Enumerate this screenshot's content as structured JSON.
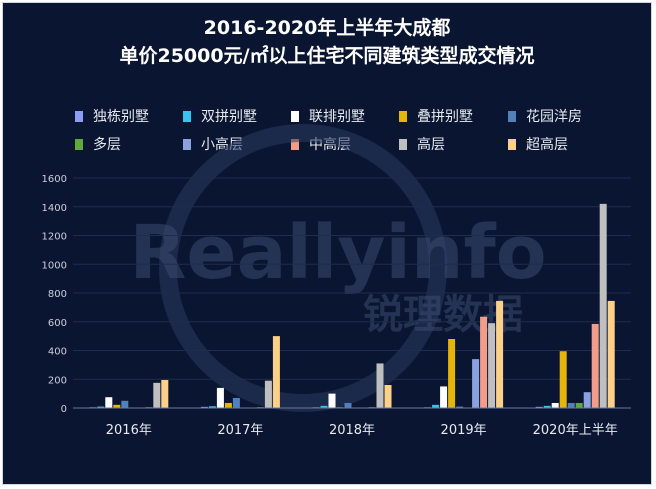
{
  "chart_data": {
    "type": "bar",
    "title_line1": "2016-2020年上半年大成都",
    "title_line2": "单价25000元/㎡以上住宅不同建筑类型成交情况",
    "categories": [
      "2016年",
      "2017年",
      "2018年",
      "2019年",
      "2020年上半年"
    ],
    "ylim": [
      0,
      1600
    ],
    "yticks": [
      "0",
      "200",
      "400",
      "600",
      "800",
      "1000",
      "1200",
      "1400",
      "1600"
    ],
    "grid": true,
    "legend_position": "top",
    "watermark_text": "Reallyinfo 锐理数据",
    "series": [
      {
        "name": "独栋别墅",
        "color": "#8e9cf5",
        "values": [
          5,
          8,
          5,
          5,
          8
        ]
      },
      {
        "name": "双拼别墅",
        "color": "#36c3f0",
        "values": [
          10,
          12,
          15,
          22,
          15
        ]
      },
      {
        "name": "联排别墅",
        "color": "#ffffff",
        "values": [
          75,
          140,
          100,
          150,
          35
        ]
      },
      {
        "name": "叠拼别墅",
        "color": "#e5b50a",
        "values": [
          22,
          35,
          5,
          480,
          395
        ]
      },
      {
        "name": "花园洋房",
        "color": "#4f81bd",
        "values": [
          50,
          70,
          35,
          10,
          35
        ]
      },
      {
        "name": "多层",
        "color": "#5fa83c",
        "values": [
          3,
          3,
          3,
          3,
          35
        ]
      },
      {
        "name": "小高层",
        "color": "#8aa2e0",
        "values": [
          3,
          3,
          3,
          340,
          110
        ]
      },
      {
        "name": "中高层",
        "color": "#f29d8a",
        "values": [
          5,
          5,
          5,
          635,
          585
        ]
      },
      {
        "name": "高层",
        "color": "#bfbfbf",
        "values": [
          175,
          190,
          310,
          590,
          1420
        ]
      },
      {
        "name": "超高层",
        "color": "#fdd08a",
        "values": [
          195,
          500,
          160,
          745,
          745
        ]
      }
    ]
  }
}
